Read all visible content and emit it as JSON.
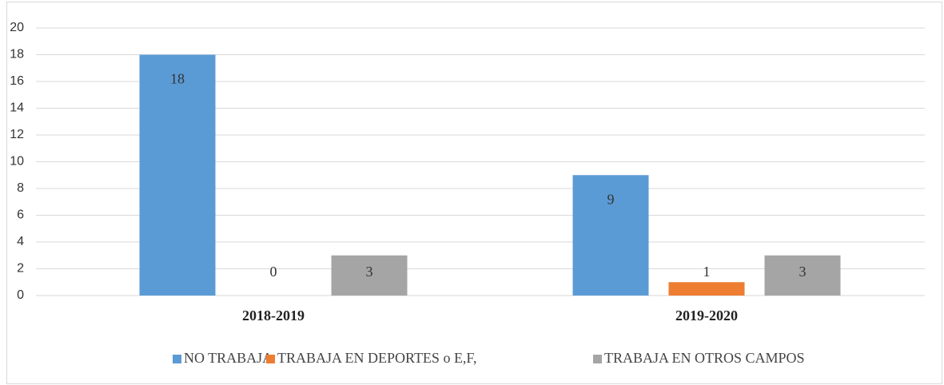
{
  "chart_data": {
    "type": "bar",
    "categories": [
      "2018-2019",
      "2019-2020"
    ],
    "series": [
      {
        "name": "NO TRABAJA",
        "color": "#5b9bd5",
        "values": [
          18,
          9
        ]
      },
      {
        "name": "TRABAJA EN DEPORTES o E,F,",
        "color": "#ed7d31",
        "values": [
          0,
          1
        ]
      },
      {
        "name": "TRABAJA EN OTROS CAMPOS",
        "color": "#a5a5a5",
        "values": [
          3,
          3
        ]
      }
    ],
    "ylim": [
      0,
      20
    ],
    "yticks": [
      0,
      2,
      4,
      6,
      8,
      10,
      12,
      14,
      16,
      18,
      20
    ],
    "grid": true,
    "legend": "bottom"
  }
}
